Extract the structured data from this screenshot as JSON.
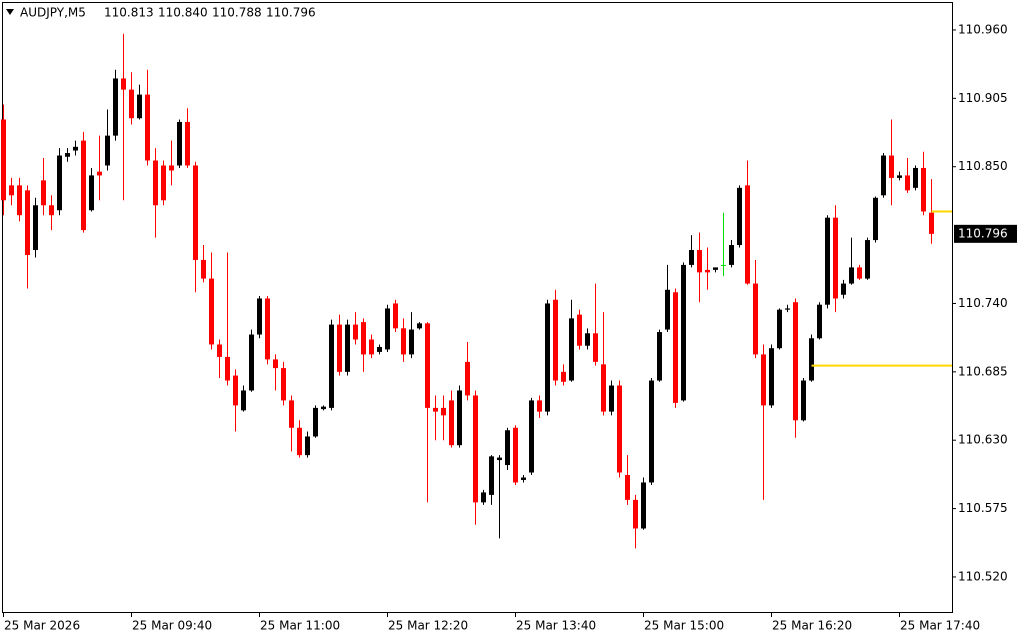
{
  "chart_data": {
    "type": "candlestick",
    "title": "AUDJPY,M5",
    "last_labels": {
      "open": "110.813",
      "high": "110.840",
      "low": "110.788",
      "close": "110.796"
    },
    "categories": [
      "25 Mar 2026",
      null,
      null,
      null,
      null,
      null,
      null,
      null,
      null,
      null,
      null,
      null,
      null,
      null,
      null,
      null,
      "25 Mar 09:40",
      null,
      null,
      null,
      null,
      null,
      null,
      null,
      null,
      null,
      null,
      null,
      null,
      null,
      null,
      null,
      "25 Mar 11:00",
      null,
      null,
      null,
      null,
      null,
      null,
      null,
      null,
      null,
      null,
      null,
      null,
      null,
      null,
      null,
      "25 Mar 12:20",
      null,
      null,
      null,
      null,
      null,
      null,
      null,
      null,
      null,
      null,
      null,
      null,
      null,
      null,
      null,
      "25 Mar 13:40",
      null,
      null,
      null,
      null,
      null,
      null,
      null,
      null,
      null,
      null,
      null,
      null,
      null,
      null,
      null,
      "25 Mar 15:00",
      null,
      null,
      null,
      null,
      null,
      null,
      null,
      null,
      null,
      null,
      null,
      null,
      null,
      null,
      null,
      "25 Mar 16:20",
      null,
      null,
      null,
      null,
      null,
      null,
      null,
      null,
      null,
      null,
      null,
      null,
      null,
      null,
      null,
      "25 Mar 17:40",
      null,
      null,
      null,
      null
    ],
    "open": [
      110.888,
      110.835,
      110.835,
      110.831,
      110.783,
      110.839,
      110.819,
      110.815,
      110.858,
      110.863,
      110.871,
      110.815,
      110.846,
      110.851,
      110.875,
      110.921,
      110.912,
      110.889,
      110.908,
      110.855,
      110.851,
      110.851,
      110.851,
      110.886,
      110.851,
      110.775,
      110.76,
      110.707,
      110.697,
      110.682,
      110.654,
      110.67,
      110.715,
      110.744,
      110.695,
      110.688,
      110.662,
      110.64,
      110.618,
      110.633,
      110.655,
      110.656,
      110.723,
      110.685,
      110.723,
      110.725,
      110.711,
      110.701,
      110.703,
      110.74,
      110.72,
      110.699,
      110.72,
      110.724,
      110.656,
      110.656,
      110.662,
      110.626,
      110.693,
      110.666,
      110.58,
      110.586,
      110.614,
      110.61,
      110.64,
      110.598,
      110.604,
      110.662,
      110.653,
      110.743,
      110.685,
      110.678,
      110.731,
      110.706,
      110.716,
      110.691,
      110.653,
      110.674,
      110.602,
      110.582,
      110.559,
      110.596,
      110.678,
      110.719,
      110.749,
      110.662,
      110.771,
      110.783,
      110.767,
      110.767,
      110.771,
      110.771,
      110.787,
      110.835,
      110.756,
      110.699,
      110.658,
      110.704,
      110.735,
      110.741,
      110.646,
      110.678,
      110.712,
      110.739,
      110.809,
      110.747,
      110.756,
      110.769,
      110.76,
      110.791,
      110.827,
      110.859,
      110.841,
      110.843,
      110.833,
      110.849,
      110.813
    ],
    "high": [
      110.9,
      110.841,
      110.841,
      110.835,
      110.825,
      110.857,
      110.827,
      110.865,
      110.865,
      110.871,
      110.878,
      110.849,
      110.875,
      110.896,
      110.928,
      110.957,
      110.926,
      110.916,
      110.928,
      110.865,
      110.855,
      110.871,
      110.888,
      110.897,
      110.854,
      110.787,
      110.781,
      110.711,
      110.781,
      110.687,
      110.674,
      110.719,
      110.746,
      110.746,
      110.699,
      110.693,
      110.666,
      110.646,
      110.637,
      110.658,
      110.658,
      110.727,
      110.731,
      110.727,
      110.733,
      110.728,
      110.715,
      110.707,
      110.739,
      110.743,
      110.728,
      110.733,
      110.725,
      110.725,
      110.666,
      110.666,
      110.67,
      110.674,
      110.709,
      110.67,
      110.59,
      110.618,
      110.618,
      110.64,
      110.642,
      110.602,
      110.664,
      110.666,
      110.743,
      110.751,
      110.691,
      110.743,
      110.735,
      110.72,
      110.756,
      110.733,
      110.678,
      110.678,
      110.618,
      110.586,
      110.6,
      110.68,
      110.719,
      110.771,
      110.752,
      110.773,
      110.795,
      110.797,
      110.785,
      110.769,
      110.813,
      110.791,
      110.835,
      110.855,
      110.775,
      110.707,
      110.707,
      110.736,
      110.739,
      110.744,
      110.68,
      110.715,
      110.741,
      110.811,
      110.819,
      110.759,
      110.793,
      110.771,
      110.793,
      110.826,
      110.861,
      110.888,
      110.846,
      110.857,
      110.851,
      110.862,
      110.84
    ],
    "low": [
      110.811,
      110.819,
      110.806,
      110.752,
      110.777,
      110.811,
      110.799,
      110.811,
      110.854,
      110.859,
      110.797,
      110.814,
      110.823,
      110.847,
      110.871,
      110.823,
      110.884,
      110.888,
      110.851,
      110.793,
      110.819,
      110.835,
      110.849,
      110.849,
      110.749,
      110.757,
      110.703,
      110.68,
      110.674,
      110.637,
      110.653,
      110.669,
      110.712,
      110.691,
      110.67,
      110.658,
      110.621,
      110.616,
      110.616,
      110.632,
      110.654,
      110.654,
      110.682,
      110.682,
      110.707,
      110.685,
      110.696,
      110.699,
      110.701,
      110.717,
      110.693,
      110.696,
      110.719,
      110.58,
      110.63,
      110.63,
      110.624,
      110.624,
      110.662,
      110.562,
      110.578,
      110.578,
      110.551,
      110.606,
      110.594,
      110.596,
      110.602,
      110.648,
      110.65,
      110.674,
      110.674,
      110.677,
      110.703,
      110.703,
      110.69,
      110.65,
      110.65,
      110.6,
      110.578,
      110.543,
      110.558,
      110.594,
      110.677,
      110.717,
      110.656,
      110.661,
      110.769,
      110.741,
      110.751,
      110.765,
      110.762,
      110.769,
      110.785,
      110.755,
      110.696,
      110.582,
      110.656,
      110.703,
      110.733,
      110.632,
      110.645,
      110.677,
      110.711,
      110.736,
      110.733,
      110.744,
      110.755,
      110.759,
      110.759,
      110.789,
      110.825,
      110.819,
      110.839,
      110.829,
      110.831,
      110.811,
      110.788
    ],
    "close": [
      110.823,
      110.827,
      110.811,
      110.779,
      110.819,
      110.819,
      110.811,
      110.859,
      110.861,
      110.866,
      110.799,
      110.843,
      110.843,
      110.875,
      110.921,
      110.912,
      110.889,
      110.908,
      110.855,
      110.819,
      110.823,
      110.847,
      110.886,
      110.851,
      110.775,
      110.76,
      110.707,
      110.697,
      110.678,
      110.658,
      110.67,
      110.715,
      110.744,
      110.695,
      110.688,
      110.662,
      110.64,
      110.618,
      110.633,
      110.656,
      110.657,
      110.723,
      110.685,
      110.723,
      110.711,
      110.699,
      110.699,
      110.705,
      110.736,
      110.72,
      110.699,
      110.719,
      110.724,
      110.656,
      110.653,
      110.65,
      110.626,
      110.67,
      110.666,
      110.58,
      110.588,
      110.617,
      110.616,
      110.638,
      110.596,
      110.6,
      110.662,
      110.653,
      110.74,
      110.678,
      110.677,
      110.728,
      110.706,
      110.716,
      110.693,
      110.653,
      110.674,
      110.604,
      110.582,
      110.559,
      110.596,
      110.678,
      110.717,
      110.751,
      110.66,
      110.771,
      110.783,
      110.765,
      110.765,
      110.769,
      110.771,
      110.787,
      110.833,
      110.756,
      110.699,
      110.658,
      110.704,
      110.735,
      110.736,
      110.646,
      110.678,
      110.712,
      110.739,
      110.809,
      110.744,
      110.756,
      110.769,
      110.76,
      110.791,
      110.825,
      110.859,
      110.841,
      110.843,
      110.831,
      110.849,
      110.814,
      110.796
    ],
    "up_color": "#000000",
    "down_color": "#ff0000",
    "doji_color": "#00e000",
    "hlines": [
      {
        "value": 110.69,
        "color": "#ffd700"
      },
      {
        "value": 110.814,
        "color": "#ffd700"
      }
    ],
    "ylim": [
      110.4918,
      110.9825
    ],
    "yticks": [
      {
        "value": 110.96,
        "label": "110.960"
      },
      110.905,
      {
        "value": 110.85,
        "label": "110.850"
      },
      {
        "value": 110.74,
        "label": "110.740"
      },
      110.685,
      {
        "value": 110.63,
        "label": "110.630"
      },
      110.575,
      {
        "value": 110.52,
        "label": "110.520"
      }
    ],
    "grid": false
  }
}
